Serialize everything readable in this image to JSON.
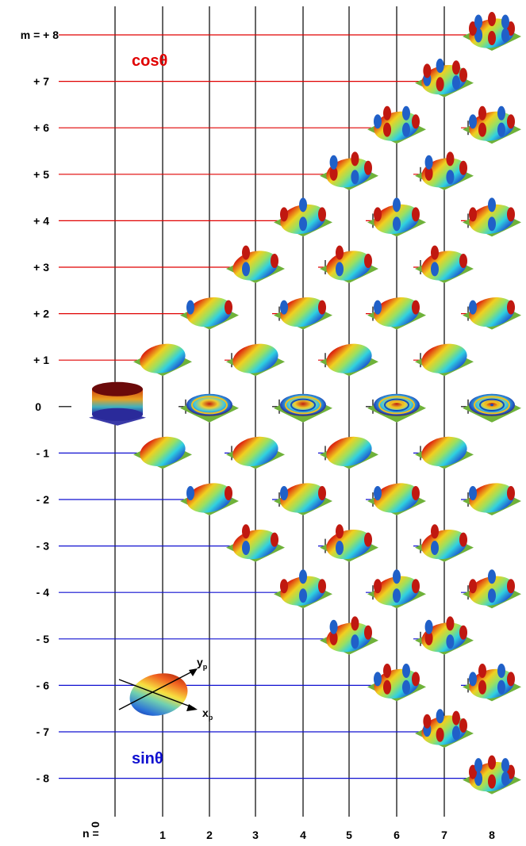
{
  "diagram": {
    "m_prefix": "m = ",
    "n_prefix": "n =",
    "cos_label": "cosθ",
    "sin_label": "sinθ",
    "axis_x_label": "x",
    "axis_x_sub": "p",
    "axis_y_label": "y",
    "axis_y_sub": "p",
    "m_values": [
      "+ 8",
      "+ 7",
      "+ 6",
      "+ 5",
      "+ 4",
      "+ 3",
      "+ 2",
      "+ 1",
      "0",
      "- 1",
      "- 2",
      "- 3",
      "- 4",
      "- 5",
      "- 6",
      "- 7",
      "- 8"
    ],
    "n_values": [
      "0",
      "1",
      "2",
      "3",
      "4",
      "5",
      "6",
      "7",
      "8"
    ],
    "colors": {
      "cos_lines": "#e00000",
      "sin_lines": "#1010d0",
      "grid": "#000000",
      "plane": "#6fb23a",
      "cylinder_top": "#6b0a0a",
      "cylinder_side": "#3a3aa8"
    }
  }
}
